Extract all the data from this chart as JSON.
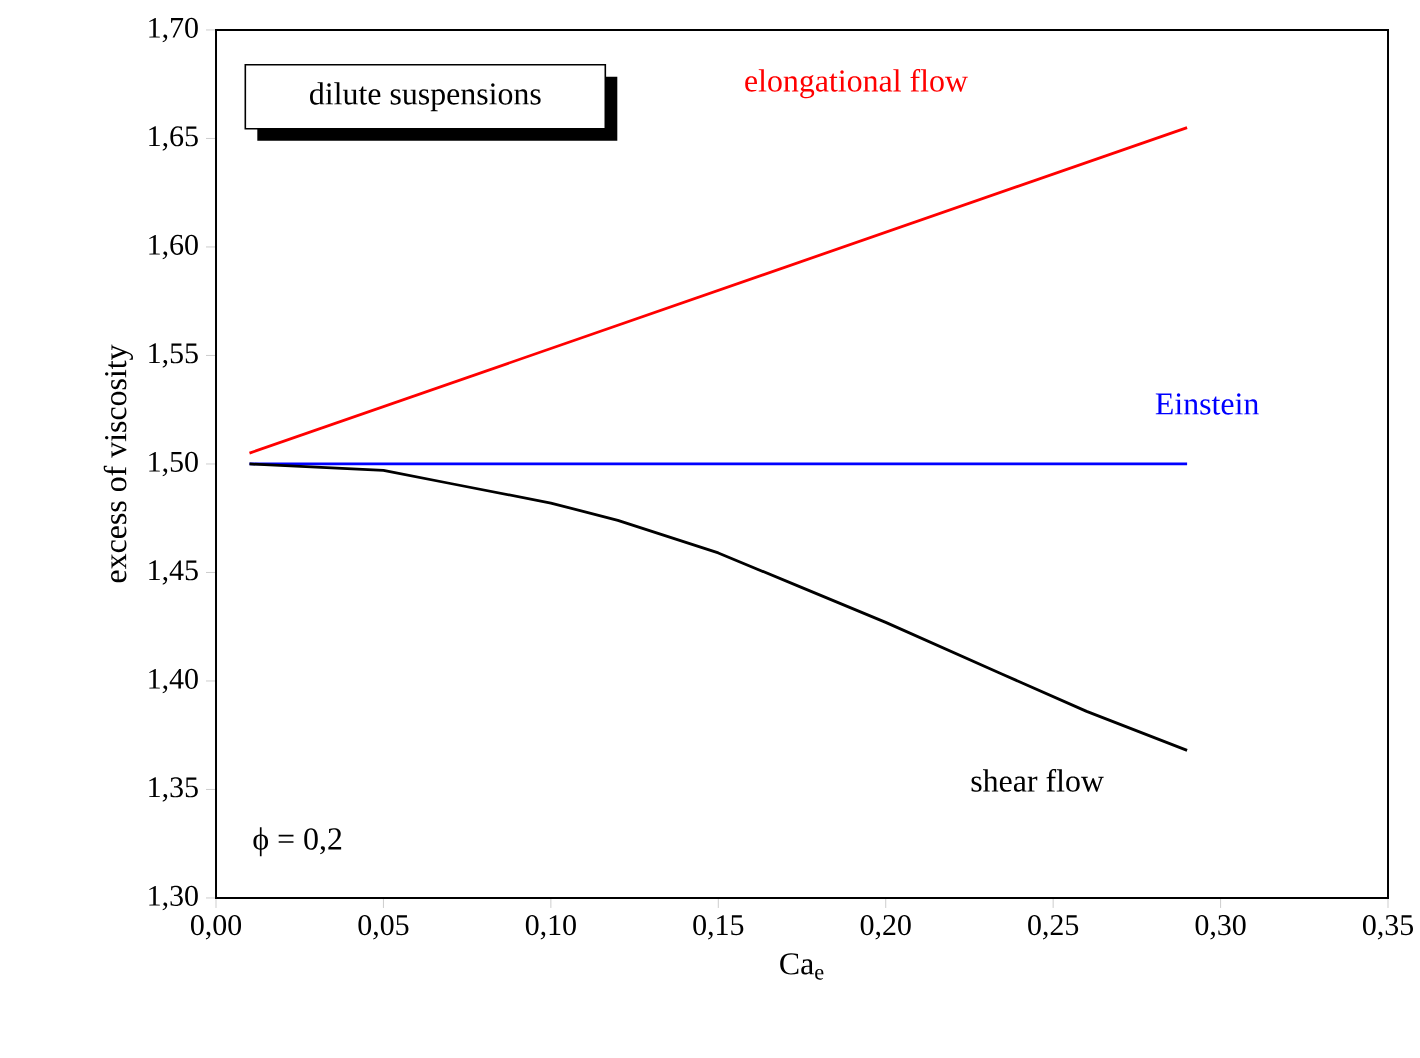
{
  "chart_data": {
    "type": "line",
    "xlabel": "Ca$_{e}$",
    "ylabel": "excess of viscosity",
    "xlim": [
      0,
      0.35
    ],
    "ylim": [
      1.3,
      1.7
    ],
    "xticks": [
      {
        "value": 0,
        "label": "0,00"
      },
      {
        "value": 0.05,
        "label": "0,05"
      },
      {
        "value": 0.1,
        "label": "0,10"
      },
      {
        "value": 0.15,
        "label": "0,15"
      },
      {
        "value": 0.2,
        "label": "0,20"
      },
      {
        "value": 0.25,
        "label": "0,25"
      },
      {
        "value": 0.3,
        "label": "0,30"
      },
      {
        "value": 0.35,
        "label": "0,35"
      }
    ],
    "yticks": [
      {
        "value": 1.3,
        "label": "1,30"
      },
      {
        "value": 1.35,
        "label": "1,35"
      },
      {
        "value": 1.4,
        "label": "1,40"
      },
      {
        "value": 1.45,
        "label": "1,45"
      },
      {
        "value": 1.5,
        "label": "1,50"
      },
      {
        "value": 1.55,
        "label": "1,55"
      },
      {
        "value": 1.6,
        "label": "1,60"
      },
      {
        "value": 1.65,
        "label": "1,65"
      },
      {
        "value": 1.7,
        "label": "1,70"
      }
    ],
    "grid": false,
    "legend": false,
    "series": [
      {
        "name": "elongational flow",
        "color": "#ff0000",
        "x": [
          0.01,
          0.29
        ],
        "values": [
          1.505,
          1.655
        ]
      },
      {
        "name": "Einstein",
        "color": "#0000ff",
        "x": [
          0.01,
          0.29
        ],
        "values": [
          1.5,
          1.5
        ]
      },
      {
        "name": "shear flow",
        "color": "#000000",
        "x": [
          0.01,
          0.05,
          0.07,
          0.1,
          0.12,
          0.15,
          0.175,
          0.2,
          0.235,
          0.26,
          0.29
        ],
        "values": [
          1.5,
          1.497,
          1.491,
          1.482,
          1.474,
          1.459,
          1.443,
          1.427,
          1.403,
          1.386,
          1.368
        ]
      }
    ],
    "annotations": [
      "dilute suspensions",
      "ϕ = 0,2"
    ]
  }
}
